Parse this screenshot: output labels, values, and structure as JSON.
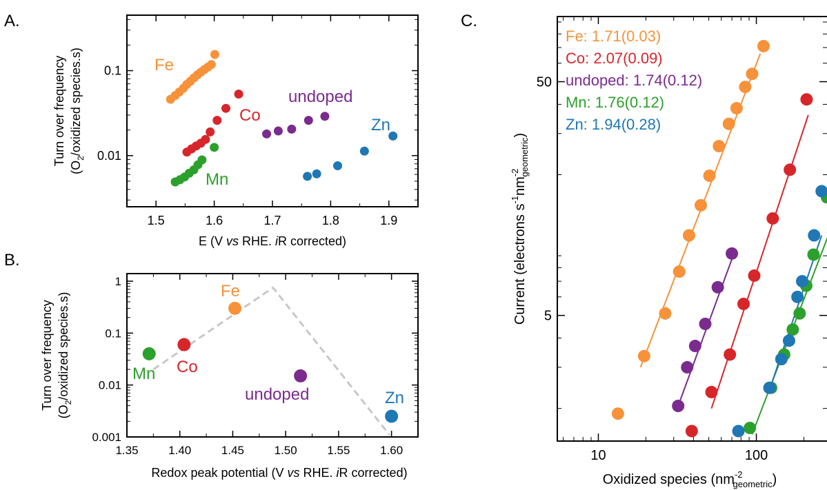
{
  "panel_labels": {
    "a": "A.",
    "b": "B.",
    "c": "C."
  },
  "colors": {
    "Fe": "#F7923A",
    "Co": "#D7262A",
    "undoped": "#7B2B8E",
    "Mn": "#2CA02C",
    "Zn": "#1F77B4",
    "guide": "#C8C8C8"
  },
  "chart_data": [
    {
      "id": "A",
      "type": "scatter",
      "xlabel_parts": [
        "E (V ",
        "vs",
        " RHE. ",
        "i",
        "R corrected)"
      ],
      "ylabel_line1": "Turn over frequency",
      "ylabel_line2_parts": [
        "(O",
        "2",
        "/oxidized species.s)"
      ],
      "xlim": [
        1.45,
        1.95
      ],
      "ylim": [
        0.0025,
        0.45
      ],
      "yscale": "log",
      "xticks": [
        1.5,
        1.6,
        1.7,
        1.8,
        1.9
      ],
      "xtick_labels": [
        "1.5",
        "1.6",
        "1.7",
        "1.8",
        "1.9"
      ],
      "yticks": [
        0.01,
        0.1
      ],
      "ytick_labels": [
        "0.01",
        "0.1"
      ],
      "series": [
        {
          "name": "Fe",
          "x": [
            1.525,
            1.533,
            1.54,
            1.547,
            1.553,
            1.559,
            1.565,
            1.571,
            1.577,
            1.583,
            1.589,
            1.595,
            1.601
          ],
          "y": [
            0.046,
            0.051,
            0.056,
            0.062,
            0.069,
            0.075,
            0.082,
            0.089,
            0.096,
            0.103,
            0.11,
            0.118,
            0.155
          ]
        },
        {
          "name": "Co",
          "x": [
            1.553,
            1.561,
            1.569,
            1.577,
            1.585,
            1.593,
            1.605,
            1.62,
            1.642
          ],
          "y": [
            0.011,
            0.012,
            0.013,
            0.014,
            0.0155,
            0.019,
            0.026,
            0.036,
            0.053
          ]
        },
        {
          "name": "undoped",
          "x": [
            1.69,
            1.71,
            1.733,
            1.762,
            1.79
          ],
          "y": [
            0.018,
            0.0195,
            0.0205,
            0.026,
            0.029
          ]
        },
        {
          "name": "Mn",
          "x": [
            1.533,
            1.541,
            1.549,
            1.557,
            1.565,
            1.572,
            1.579,
            1.6
          ],
          "y": [
            0.0049,
            0.0052,
            0.0056,
            0.0062,
            0.0068,
            0.0078,
            0.0089,
            0.0125
          ]
        },
        {
          "name": "Zn",
          "x": [
            1.76,
            1.776,
            1.812,
            1.858,
            1.907
          ],
          "y": [
            0.0057,
            0.0061,
            0.0076,
            0.0113,
            0.017
          ]
        }
      ],
      "labels": [
        "Fe",
        "Co",
        "undoped",
        "Mn",
        "Zn"
      ]
    },
    {
      "id": "B",
      "type": "scatter",
      "xlabel_parts": [
        "Redox peak potential (V ",
        "vs",
        " RHE. ",
        "i",
        "R corrected)"
      ],
      "ylabel_line1": "Turn over frequency",
      "ylabel_line2_parts": [
        "(O",
        "2",
        "/oxidized species.s)"
      ],
      "xlim": [
        1.35,
        1.625
      ],
      "ylim": [
        0.001,
        1.4
      ],
      "yscale": "log",
      "xticks": [
        1.35,
        1.4,
        1.45,
        1.5,
        1.55,
        1.6
      ],
      "xtick_labels": [
        "1.35",
        "1.40",
        "1.45",
        "1.50",
        "1.55",
        "1.60"
      ],
      "yticks": [
        0.001,
        0.01,
        0.1,
        1
      ],
      "ytick_labels": [
        "0.001",
        "0.01",
        "0.1",
        "1"
      ],
      "points": [
        {
          "name": "Mn",
          "x": 1.371,
          "y": 0.04
        },
        {
          "name": "Co",
          "x": 1.404,
          "y": 0.06
        },
        {
          "name": "Fe",
          "x": 1.452,
          "y": 0.3
        },
        {
          "name": "undoped",
          "x": 1.514,
          "y": 0.015
        },
        {
          "name": "Zn",
          "x": 1.6,
          "y": 0.0025
        }
      ],
      "guide_line": {
        "x": [
          1.375,
          1.488,
          1.598
        ],
        "y": [
          0.02,
          0.75,
          0.0011
        ]
      }
    },
    {
      "id": "C",
      "type": "scatter",
      "xlabel_parts": [
        "Oxidized species (nm",
        "-2",
        "geometric",
        ")"
      ],
      "ylabel_parts": [
        "Current (electrons s",
        "-1",
        "nm",
        "-2",
        "geometric",
        ")"
      ],
      "xscale": "log",
      "yscale": "log",
      "xlim": [
        5.5,
        280
      ],
      "ylim": [
        1.45,
        95
      ],
      "xticks": [
        10,
        100
      ],
      "xtick_labels": [
        "10",
        "100"
      ],
      "yticks": [
        5,
        50
      ],
      "ytick_labels": [
        "5",
        "50"
      ],
      "legend": [
        {
          "name": "Fe",
          "text": "Fe: 1.71(0.03)"
        },
        {
          "name": "Co",
          "text": "Co: 2.07(0.09)"
        },
        {
          "name": "undoped",
          "text": "undoped: 1.74(0.12)"
        },
        {
          "name": "Mn",
          "text": "Mn: 1.76(0.12)"
        },
        {
          "name": "Zn",
          "text": "Zn: 1.94(0.28)"
        }
      ],
      "series": [
        {
          "name": "Fe",
          "slope": 1.71,
          "x": [
            13.3,
            19.5,
            26.5,
            32.5,
            37.5,
            44.5,
            50.5,
            58.0,
            67.0,
            75.0,
            85.0,
            94.0,
            111.0
          ],
          "y": [
            1.9,
            3.35,
            5.1,
            7.7,
            11.0,
            14.8,
            19.8,
            26.5,
            33.0,
            38.5,
            47.5,
            54.0,
            71.0
          ],
          "fit": {
            "x": [
              18.5,
              106.0
            ],
            "y": [
              3.0,
              66.0
            ]
          }
        },
        {
          "name": "Co",
          "slope": 2.07,
          "x": [
            39,
            52,
            68,
            83,
            97,
            127,
            163,
            208
          ],
          "y": [
            1.6,
            2.35,
            3.4,
            5.6,
            7.4,
            13.0,
            21.0,
            42.0
          ],
          "fit": {
            "x": [
              52,
              213
            ],
            "y": [
              2.0,
              36.0
            ]
          }
        },
        {
          "name": "undoped",
          "slope": 1.74,
          "x": [
            32,
            36.5,
            41,
            47.5,
            57,
            70
          ],
          "y": [
            2.05,
            3.0,
            3.7,
            4.6,
            6.6,
            9.2
          ],
          "fit": {
            "x": [
              32,
              70
            ],
            "y": [
              2.05,
              8.7
            ]
          }
        },
        {
          "name": "Mn",
          "slope": 1.76,
          "x": [
            91,
            124,
            150,
            170,
            188,
            207,
            230,
            280
          ],
          "y": [
            1.65,
            2.45,
            3.4,
            4.35,
            5.1,
            6.7,
            9.1,
            16.0
          ],
          "fit": {
            "x": [
              94,
              300
            ],
            "y": [
              1.55,
              12.0
            ]
          }
        },
        {
          "name": "Zn",
          "slope": 1.94,
          "x": [
            77,
            121,
            144,
            161,
            182,
            195,
            232,
            259
          ],
          "y": [
            1.6,
            2.45,
            3.25,
            3.9,
            6.0,
            7.0,
            11.0,
            17.0
          ],
          "fit": {
            "x": [
              121,
              259
            ],
            "y": [
              2.4,
              11.0
            ]
          }
        }
      ]
    }
  ]
}
